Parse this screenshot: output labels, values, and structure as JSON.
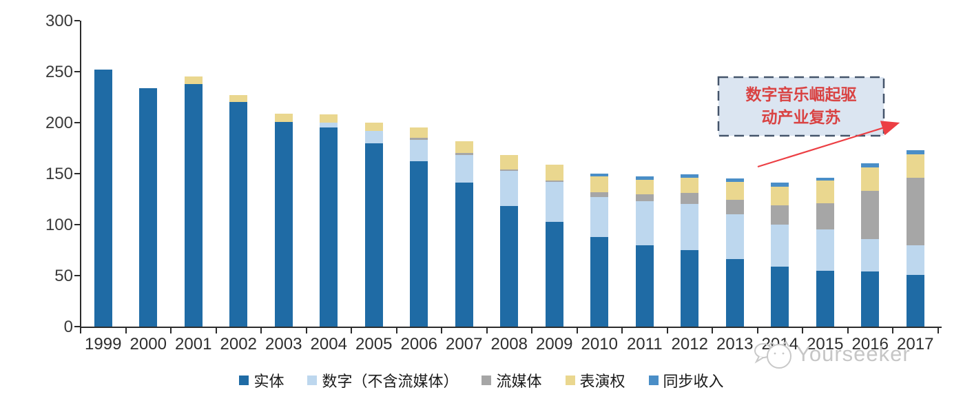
{
  "chart_data": {
    "type": "bar",
    "stacked": true,
    "title": "",
    "xlabel": "",
    "ylabel": "",
    "categories": [
      "1999",
      "2000",
      "2001",
      "2002",
      "2003",
      "2004",
      "2005",
      "2006",
      "2007",
      "2008",
      "2009",
      "2010",
      "2011",
      "2012",
      "2013",
      "2014",
      "2015",
      "2016",
      "2017"
    ],
    "series": [
      {
        "key": "physical",
        "name": "实体",
        "color": "#1F6BA5",
        "values": [
          252,
          234,
          238,
          220,
          201,
          195,
          180,
          162,
          141,
          118,
          103,
          88,
          80,
          75,
          66,
          59,
          55,
          54,
          51
        ]
      },
      {
        "key": "digital-excl-streaming",
        "name": "数字（不含流媒体）",
        "color": "#BDD7EE",
        "values": [
          0,
          0,
          0,
          0,
          0,
          5,
          12,
          21,
          27,
          35,
          39,
          39,
          43,
          45,
          44,
          41,
          40,
          32,
          29
        ]
      },
      {
        "key": "streaming",
        "name": "流媒体",
        "color": "#A6A6A6",
        "values": [
          0,
          0,
          0,
          0,
          0,
          0,
          0,
          2,
          2,
          1,
          1,
          5,
          7,
          11,
          14,
          19,
          26,
          47,
          66
        ]
      },
      {
        "key": "performance-rights",
        "name": "表演权",
        "color": "#EAD78F",
        "values": [
          0,
          0,
          7,
          7,
          8,
          8,
          8,
          10,
          12,
          14,
          16,
          15,
          14,
          15,
          18,
          18,
          22,
          23,
          23
        ]
      },
      {
        "key": "sync-revenue",
        "name": "同步收入",
        "color": "#4A8EC7",
        "values": [
          0,
          0,
          0,
          0,
          0,
          0,
          0,
          0,
          0,
          0,
          0,
          3,
          3,
          3,
          3,
          4,
          3,
          4,
          4
        ]
      }
    ],
    "ylim": [
      0,
      300
    ],
    "yticks": [
      0,
      50,
      100,
      150,
      200,
      250,
      300
    ],
    "grid": false,
    "legend_position": "bottom"
  },
  "annotation": {
    "line1": "数字音乐崛起驱",
    "line2": "动产业复苏",
    "text_color": "#D94343",
    "border_color": "#44546A",
    "fill_color": "#DBE5F1",
    "arrow_color": "#EC3F44"
  },
  "watermark": {
    "text": "Yourseeker",
    "color": "#C6C6C6"
  }
}
